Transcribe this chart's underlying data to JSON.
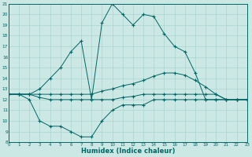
{
  "xlabel": "Humidex (Indice chaleur)",
  "background_color": "#cce8e4",
  "grid_color": "#aad4d0",
  "line_color": "#006666",
  "xlim": [
    0,
    23
  ],
  "ylim": [
    8,
    21
  ],
  "yticks": [
    8,
    9,
    10,
    11,
    12,
    13,
    14,
    15,
    16,
    17,
    18,
    19,
    20,
    21
  ],
  "xticks": [
    0,
    1,
    2,
    3,
    4,
    5,
    6,
    7,
    8,
    9,
    10,
    11,
    12,
    13,
    14,
    15,
    16,
    17,
    18,
    19,
    20,
    21,
    22,
    23
  ],
  "line_peak_x": [
    0,
    1,
    2,
    3,
    4,
    5,
    6,
    7,
    8,
    9,
    10,
    11,
    12,
    13,
    14,
    15,
    16,
    17,
    18,
    19,
    20,
    21,
    22,
    23
  ],
  "line_peak_y": [
    12.5,
    12.5,
    12.5,
    13.0,
    14.0,
    15.0,
    16.5,
    17.5,
    12.0,
    19.2,
    21.0,
    20.0,
    19.0,
    20.0,
    19.8,
    18.2,
    17.0,
    16.5,
    14.5,
    12.0,
    12.0,
    12.0,
    12.0,
    12.0
  ],
  "line_upper_x": [
    0,
    1,
    2,
    3,
    4,
    5,
    6,
    7,
    8,
    9,
    10,
    11,
    12,
    13,
    14,
    15,
    16,
    17,
    18,
    19,
    20,
    21,
    22,
    23
  ],
  "line_upper_y": [
    12.5,
    12.5,
    12.5,
    12.5,
    12.5,
    12.5,
    12.5,
    12.5,
    12.5,
    12.8,
    13.0,
    13.3,
    13.5,
    13.8,
    14.2,
    14.5,
    14.5,
    14.3,
    13.8,
    13.2,
    12.5,
    12.0,
    12.0,
    12.0
  ],
  "line_lower_x": [
    0,
    1,
    2,
    3,
    4,
    5,
    6,
    7,
    8,
    9,
    10,
    11,
    12,
    13,
    14,
    15,
    16,
    17,
    18,
    19,
    20,
    21,
    22,
    23
  ],
  "line_lower_y": [
    12.5,
    12.5,
    12.5,
    12.2,
    12.0,
    12.0,
    12.0,
    12.0,
    12.0,
    12.0,
    12.0,
    12.2,
    12.3,
    12.5,
    12.5,
    12.5,
    12.5,
    12.5,
    12.5,
    12.5,
    12.5,
    12.0,
    12.0,
    12.0
  ],
  "line_bot_x": [
    0,
    1,
    2,
    3,
    4,
    5,
    6,
    7,
    8,
    9,
    10,
    11,
    12,
    13,
    14,
    15,
    16,
    17,
    18,
    19,
    20,
    21,
    22,
    23
  ],
  "line_bot_y": [
    12.5,
    12.5,
    12.0,
    10.0,
    9.5,
    9.5,
    9.0,
    8.5,
    8.5,
    10.0,
    11.0,
    11.5,
    11.5,
    11.5,
    12.0,
    12.0,
    12.0,
    12.0,
    12.0,
    12.0,
    12.0,
    12.0,
    12.0,
    12.0
  ]
}
